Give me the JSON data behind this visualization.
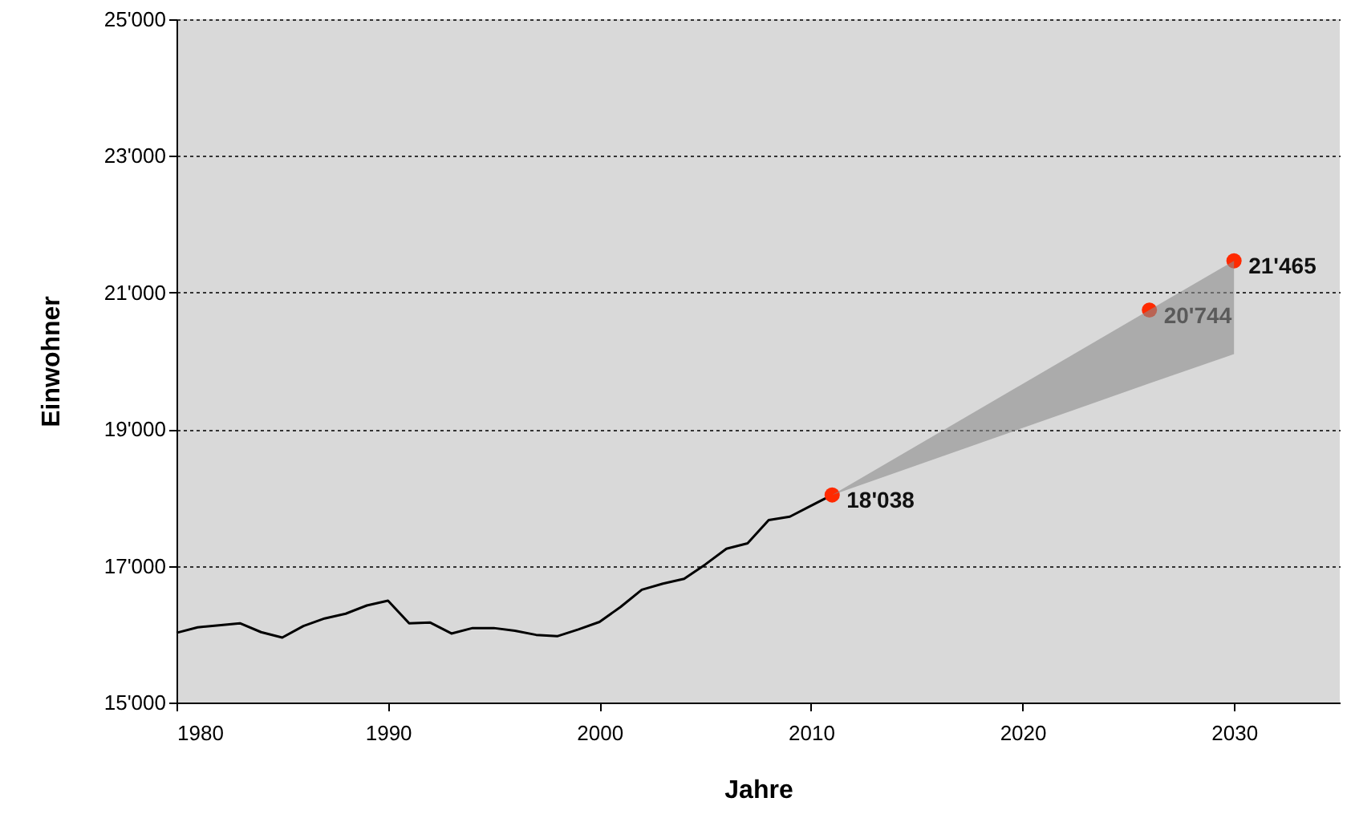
{
  "chart_data": {
    "type": "line",
    "xlabel": "Jahre",
    "ylabel": "Einwohner",
    "xlim": [
      1980,
      2035
    ],
    "xticks": [
      1980,
      1990,
      2000,
      2010,
      2020,
      2030
    ],
    "ylim": [
      15000,
      25000
    ],
    "yticks": [
      {
        "value": 15000,
        "label": "15'000"
      },
      {
        "value": 17000,
        "label": "17'000"
      },
      {
        "value": 19000,
        "label": "19'000"
      },
      {
        "value": 21000,
        "label": "21'000"
      },
      {
        "value": 23000,
        "label": "23'000"
      },
      {
        "value": 25000,
        "label": "25'000"
      }
    ],
    "grid": "y",
    "series": [
      {
        "color": "#000000",
        "marker": "none",
        "line_style": "solid",
        "x": [
          1980,
          1981,
          1982,
          1983,
          1984,
          1985,
          1986,
          1987,
          1988,
          1989,
          1990,
          1991,
          1992,
          1993,
          1994,
          1995,
          1996,
          1997,
          1998,
          1999,
          2000,
          2001,
          2002,
          2003,
          2004,
          2005,
          2006,
          2007,
          2008,
          2009,
          2010,
          2011
        ],
        "values": [
          16020,
          16100,
          16130,
          16160,
          16030,
          15950,
          16120,
          16230,
          16300,
          16420,
          16490,
          16160,
          16170,
          16010,
          16090,
          16090,
          16050,
          15990,
          15970,
          16070,
          16180,
          16400,
          16650,
          16740,
          16810,
          17020,
          17250,
          17330,
          17670,
          17720,
          17880,
          18038
        ]
      },
      {
        "type": "scatter",
        "color": "#ff2a00",
        "marker": "circle",
        "x": [
          2011,
          2026,
          2030
        ],
        "values": [
          18038,
          20744,
          21465
        ],
        "value_labels": [
          "18'038",
          "20'744",
          "21'465"
        ],
        "lower": [
          18038,
          19670,
          20100
        ],
        "upper": [
          18038,
          20744,
          21465
        ]
      }
    ]
  }
}
